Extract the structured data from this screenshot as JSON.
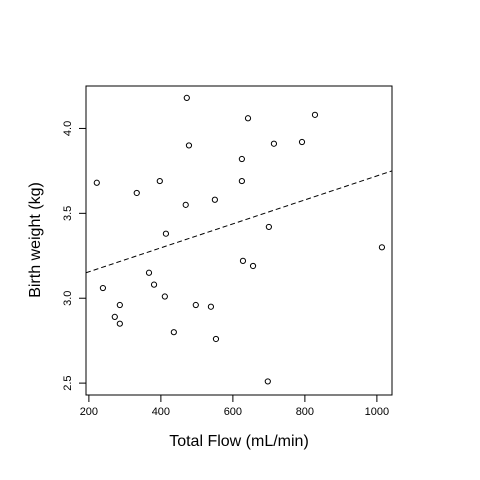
{
  "chart_data": {
    "type": "scatter",
    "x_label": "Total Flow (mL/min)",
    "y_label": "Birth weight (kg)",
    "x": [
      222,
      239,
      286,
      272,
      286,
      333,
      367,
      381,
      397,
      411,
      414,
      436,
      472,
      469,
      478,
      497,
      539,
      550,
      553,
      625,
      625,
      628,
      642,
      656,
      697,
      700,
      714,
      792,
      828,
      1014
    ],
    "values": [
      3.68,
      3.06,
      2.96,
      2.89,
      2.85,
      3.62,
      3.15,
      3.08,
      3.69,
      3.01,
      3.38,
      2.8,
      4.18,
      3.55,
      3.9,
      2.96,
      2.95,
      3.58,
      2.76,
      3.82,
      3.69,
      3.22,
      4.06,
      3.19,
      2.51,
      3.42,
      3.91,
      3.92,
      4.08,
      3.3
    ],
    "color": "#000000",
    "trend_line": {
      "x": [
        192,
        1042
      ],
      "y": [
        3.15,
        3.75
      ]
    },
    "xlim": [
      192,
      1042
    ],
    "ylim": [
      2.43,
      4.25
    ],
    "xticks": [
      200,
      400,
      600,
      800,
      1000
    ],
    "yticks": [
      2.5,
      {
        "value": 3,
        "label": "3.0"
      },
      3.5,
      {
        "value": 4,
        "label": "4.0"
      }
    ]
  }
}
